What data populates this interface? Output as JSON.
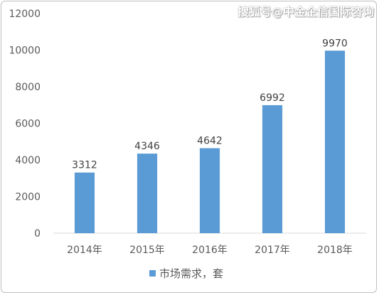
{
  "watermark": "搜狐号@中金企信国际咨询",
  "colors": {
    "bar": "#5b9bd5",
    "axis": "#d9d9d9",
    "text": "#595959"
  },
  "chart_data": {
    "type": "bar",
    "categories": [
      "2014年",
      "2015年",
      "2016年",
      "2017年",
      "2018年"
    ],
    "series": [
      {
        "name": "市场需求，套",
        "values": [
          3312,
          4346,
          4642,
          6992,
          9970
        ]
      }
    ],
    "ylim": [
      0,
      12000
    ],
    "yticks": [
      0,
      2000,
      4000,
      6000,
      8000,
      10000,
      12000
    ],
    "grid": false,
    "legend_position": "bottom",
    "data_labels": [
      "3312",
      "4346",
      "4642",
      "6992",
      "9970"
    ]
  }
}
